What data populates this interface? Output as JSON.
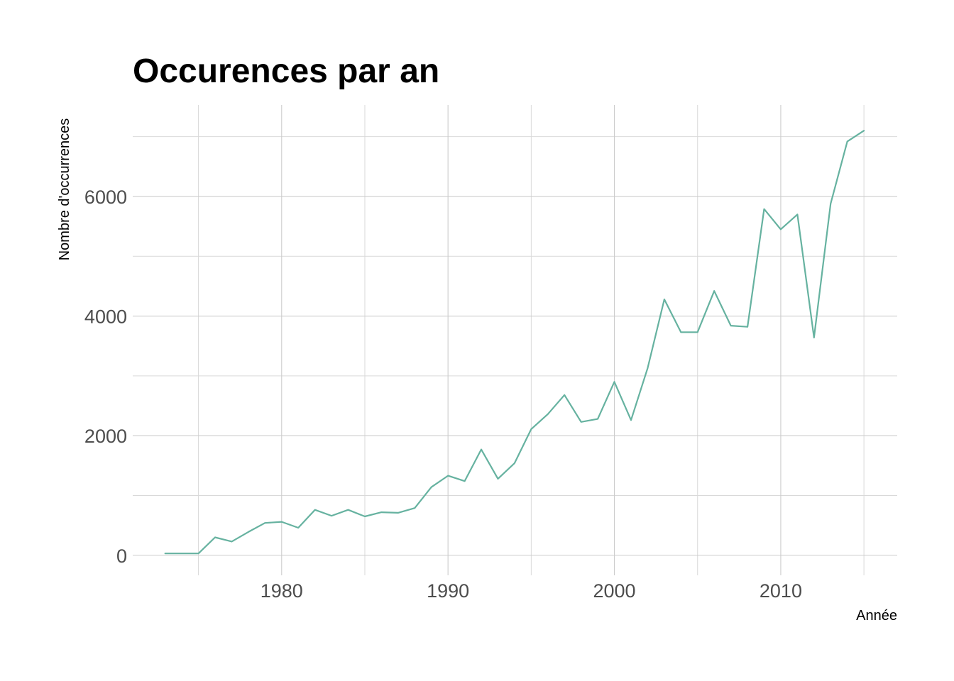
{
  "chart_data": {
    "type": "line",
    "title": "Occurences par an",
    "xlabel": "Année",
    "ylabel": "Nombre d'occurrences",
    "xlim": [
      1971.05,
      2017.0
    ],
    "ylim": [
      -335,
      7530
    ],
    "x_ticks": [
      1980,
      1990,
      2000,
      2010
    ],
    "y_ticks": [
      0,
      2000,
      4000,
      6000
    ],
    "x_ticks_labels": [
      "1980",
      "1990",
      "2000",
      "2010"
    ],
    "y_ticks_labels": [
      "0",
      "2000",
      "4000",
      "6000"
    ],
    "grid": true,
    "legend": "none",
    "line_color": "#66b2a0",
    "series": [
      {
        "x": [
          1973,
          1974,
          1975,
          1976,
          1977,
          1978,
          1979,
          1980,
          1981,
          1982,
          1983,
          1984,
          1985,
          1986,
          1987,
          1988,
          1989,
          1990,
          1991,
          1992,
          1993,
          1994,
          1995,
          1996,
          1997,
          1998,
          1999,
          2000,
          2001,
          2002,
          2003,
          2004,
          2005,
          2006,
          2007,
          2008,
          2009,
          2010,
          2011,
          2012,
          2013,
          2014,
          2015
        ],
        "values": [
          30,
          30,
          30,
          300,
          230,
          390,
          540,
          560,
          460,
          760,
          660,
          760,
          650,
          720,
          710,
          790,
          1140,
          1330,
          1240,
          1770,
          1280,
          1540,
          2110,
          2360,
          2680,
          2230,
          2280,
          2900,
          2260,
          3130,
          4280,
          3730,
          3730,
          4420,
          3840,
          3820,
          5790,
          5450,
          5700,
          3640,
          5880,
          6920,
          7100
        ]
      }
    ]
  }
}
